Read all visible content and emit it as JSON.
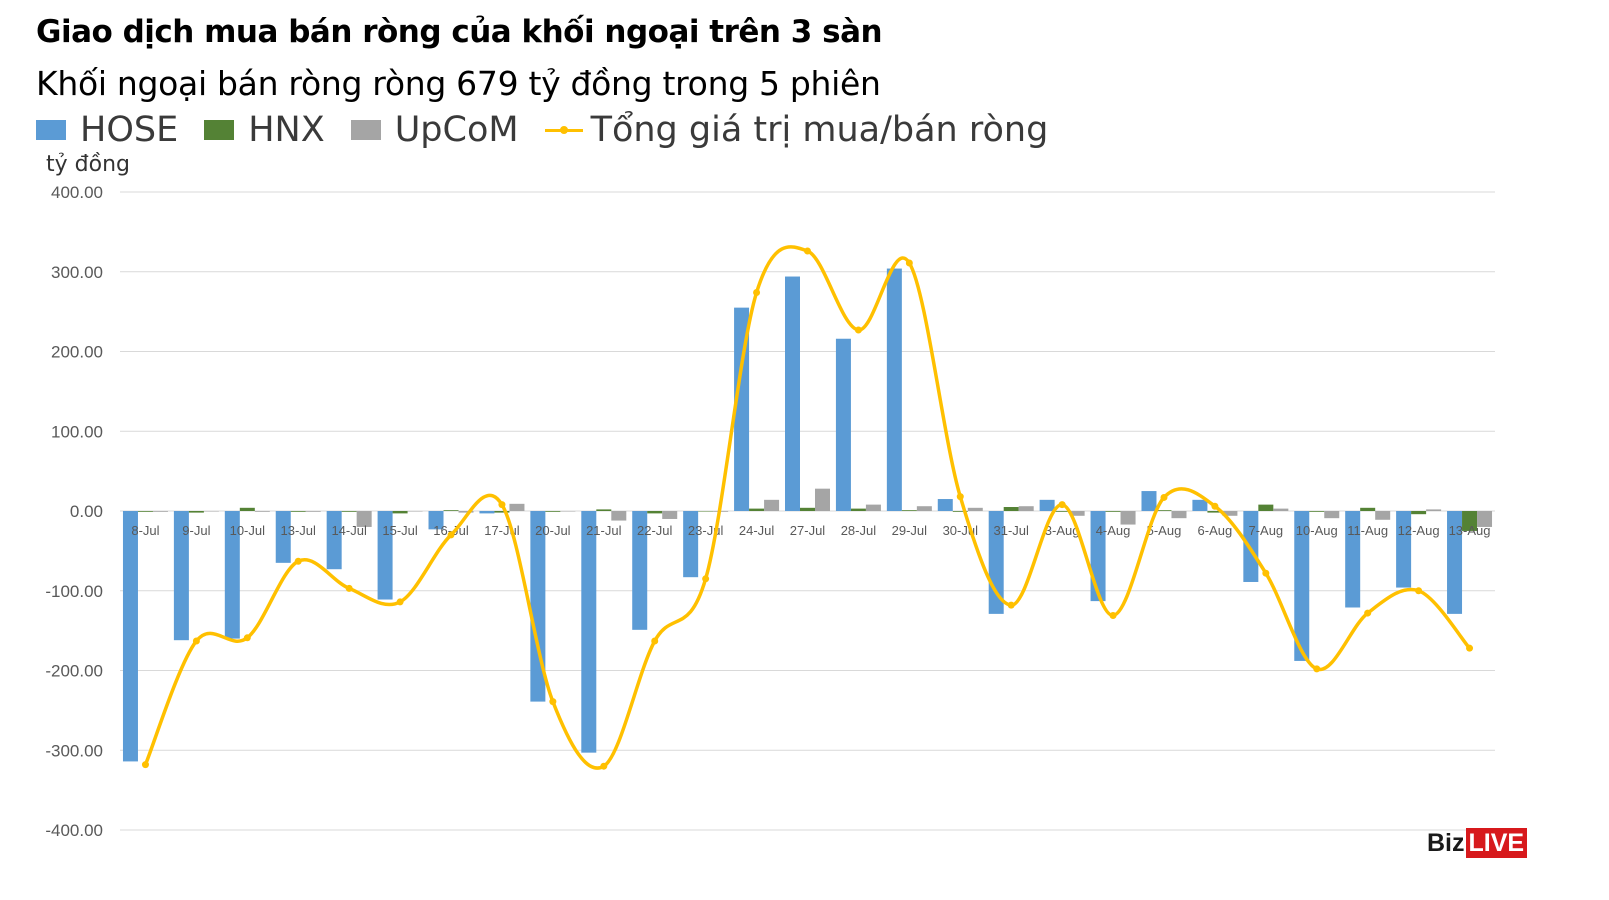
{
  "title": "Giao dịch mua bán ròng của khối ngoại trên 3 sàn",
  "subtitle": "Khối ngoại bán ròng ròng 679 tỷ đồng trong 5 phiên",
  "brand": {
    "part1": "Biz",
    "part2": "LIVE",
    "part2_bg": "#d7191c"
  },
  "colors": {
    "hose": "#5b9bd5",
    "hnx": "#548235",
    "upcom": "#a5a5a5",
    "total": "#ffc000",
    "grid": "#d9d9d9",
    "axis_text": "#595959"
  },
  "legend": [
    {
      "label": "HOSE",
      "icon": "square-swatch",
      "color": "#5b9bd5"
    },
    {
      "label": "HNX",
      "icon": "square-swatch",
      "color": "#548235"
    },
    {
      "label": "UpCoM",
      "icon": "square-swatch",
      "color": "#a5a5a5"
    },
    {
      "label": "Tổng giá trị mua/bán ròng",
      "icon": "line-marker-swatch",
      "color": "#ffc000"
    }
  ],
  "chart_data": {
    "type": "bar",
    "title": "Giao dịch mua bán ròng của khối ngoại trên 3 sàn",
    "subtitle": "Khối ngoại bán ròng ròng 679 tỷ đồng trong 5 phiên",
    "ylabel": "tỷ đồng",
    "xlabel": "",
    "ylim": [
      -400,
      400
    ],
    "yticks": [
      400,
      300,
      200,
      100,
      0,
      -100,
      -200,
      -300,
      -400
    ],
    "ytick_labels": [
      "400.00",
      "300.00",
      "200.00",
      "100.00",
      "0.00",
      "-100.00",
      "-200.00",
      "-300.00",
      "-400.00"
    ],
    "grid": true,
    "legend_position": "top",
    "categories": [
      "8-Jul",
      "9-Jul",
      "10-Jul",
      "13-Jul",
      "14-Jul",
      "15-Jul",
      "16-Jul",
      "17-Jul",
      "20-Jul",
      "21-Jul",
      "22-Jul",
      "23-Jul",
      "24-Jul",
      "27-Jul",
      "28-Jul",
      "29-Jul",
      "30-Jul",
      "31-Jul",
      "3-Aug",
      "4-Aug",
      "5-Aug",
      "6-Aug",
      "7-Aug",
      "10-Aug",
      "11-Aug",
      "12-Aug",
      "13-Aug"
    ],
    "series": [
      {
        "name": "HOSE",
        "kind": "bar",
        "values": [
          -314,
          -162,
          -160,
          -65,
          -73,
          -111,
          -23,
          -3,
          -239,
          -303,
          -149,
          -83,
          255,
          294,
          216,
          304,
          15,
          -129,
          14,
          -113,
          25,
          14,
          -89,
          -188,
          -121,
          -96,
          -129
        ]
      },
      {
        "name": "HNX",
        "kind": "bar",
        "values": [
          -1,
          -2,
          4,
          -1,
          -1,
          -3,
          1,
          -2,
          -1,
          2,
          -3,
          0,
          3,
          4,
          3,
          1,
          -1,
          5,
          -1,
          -1,
          1,
          -2,
          8,
          -1,
          4,
          -4,
          -25
        ]
      },
      {
        "name": "UpCoM",
        "kind": "bar",
        "values": [
          -1,
          0,
          -1,
          -1,
          -20,
          0,
          -2,
          9,
          0,
          -12,
          -10,
          -1,
          14,
          28,
          8,
          6,
          4,
          6,
          -6,
          -17,
          -9,
          -6,
          3,
          -9,
          -11,
          2,
          -20
        ]
      },
      {
        "name": "Tổng giá trị mua/bán ròng",
        "kind": "line",
        "values": [
          -318,
          -163,
          -159,
          -63,
          -97,
          -114,
          -30,
          8,
          -239,
          -320,
          -163,
          -85,
          274,
          326,
          227,
          311,
          18,
          -118,
          8,
          -131,
          17,
          6,
          -78,
          -198,
          -128,
          -100,
          -172
        ]
      }
    ]
  }
}
